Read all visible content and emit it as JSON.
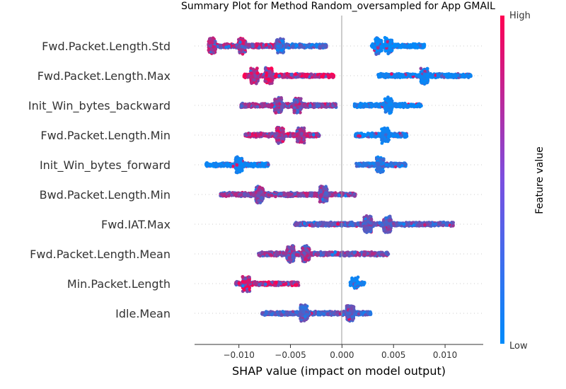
{
  "chart_data": {
    "type": "scatter",
    "subtype": "shap-beeswarm",
    "title": "Summary Plot for Method Random_oversampled for App GMAIL",
    "xlabel": "SHAP value (impact on model output)",
    "xlim": [
      -0.0143,
      0.0137
    ],
    "xticks": [
      -0.01,
      -0.005,
      0.0,
      0.005,
      0.01
    ],
    "xtick_labels": [
      "−0.010",
      "−0.005",
      "0.000",
      "0.005",
      "0.010"
    ],
    "colorbar": {
      "label": "Feature value",
      "high": "High",
      "low": "Low",
      "low_color": "#008bfb",
      "high_color": "#ff0052"
    },
    "features": [
      {
        "name": "Fwd.Packet.Length.Std",
        "min": -0.0128,
        "max": 0.008,
        "clusters": [
          {
            "start": -0.0128,
            "end": -0.0063,
            "dens": [
              -0.0126,
              -0.0097
            ],
            "hue": [
              0.55,
              0.4
            ]
          },
          {
            "start": -0.0062,
            "end": -0.0015,
            "dens": [
              -0.006
            ],
            "hue": [
              0.2,
              0.2
            ]
          },
          {
            "start": 0.0028,
            "end": 0.008,
            "dens": [
              0.0035,
              0.0045
            ],
            "hue": [
              0.02,
              0.05
            ]
          }
        ]
      },
      {
        "name": "Fwd.Packet.Length.Max",
        "min": -0.0095,
        "max": 0.0125,
        "clusters": [
          {
            "start": -0.0095,
            "end": -0.0008,
            "dens": [
              -0.0071,
              -0.0085
            ],
            "hue": [
              0.75,
              0.3
            ]
          },
          {
            "start": 0.0035,
            "end": 0.0125,
            "dens": [
              0.008
            ],
            "hue": [
              0.05,
              0.05
            ]
          }
        ]
      },
      {
        "name": "Init_Win_bytes_backward",
        "min": -0.0098,
        "max": 0.0077,
        "clusters": [
          {
            "start": -0.0098,
            "end": -0.0005,
            "dens": [
              -0.0062,
              -0.0043
            ],
            "hue": [
              0.5,
              0.3
            ]
          },
          {
            "start": 0.0012,
            "end": 0.0077,
            "dens": [
              0.0045
            ],
            "hue": [
              0.05,
              0.05
            ]
          }
        ]
      },
      {
        "name": "Fwd.Packet.Length.Min",
        "min": -0.0094,
        "max": 0.0063,
        "clusters": [
          {
            "start": -0.0094,
            "end": -0.0022,
            "dens": [
              -0.006,
              -0.004
            ],
            "hue": [
              0.7,
              0.35
            ]
          },
          {
            "start": 0.0013,
            "end": 0.0063,
            "dens": [
              0.0042
            ],
            "hue": [
              0.05,
              0.05
            ]
          }
        ]
      },
      {
        "name": "Init_Win_bytes_forward",
        "min": -0.0132,
        "max": 0.0062,
        "clusters": [
          {
            "start": -0.0132,
            "end": -0.0071,
            "dens": [
              -0.01
            ],
            "hue": [
              0.05,
              0.05
            ]
          },
          {
            "start": 0.0013,
            "end": 0.0062,
            "dens": [
              0.0037
            ],
            "hue": [
              0.15,
              0.15
            ]
          }
        ]
      },
      {
        "name": "Bwd.Packet.Length.Min",
        "min": -0.0118,
        "max": 0.0013,
        "clusters": [
          {
            "start": -0.0118,
            "end": 0.0013,
            "dens": [
              -0.0018,
              -0.008
            ],
            "hue": [
              0.5,
              0.25
            ]
          }
        ]
      },
      {
        "name": "Fwd.IAT.Max",
        "min": -0.0046,
        "max": 0.0108,
        "clusters": [
          {
            "start": -0.0046,
            "end": 0.0108,
            "dens": [
              0.0044,
              0.0025
            ],
            "hue": [
              0.35,
              0.2
            ]
          }
        ]
      },
      {
        "name": "Fwd.Packet.Length.Mean",
        "min": -0.0081,
        "max": 0.0045,
        "clusters": [
          {
            "start": -0.0081,
            "end": 0.0045,
            "dens": [
              -0.005,
              -0.0035
            ],
            "hue": [
              0.5,
              0.3
            ]
          }
        ]
      },
      {
        "name": "Min.Packet.Length",
        "min": -0.0103,
        "max": 0.0022,
        "clusters": [
          {
            "start": -0.0103,
            "end": -0.0042,
            "dens": [
              -0.0093
            ],
            "hue": [
              0.8,
              0.5
            ]
          },
          {
            "start": 0.0008,
            "end": 0.0022,
            "dens": [
              0.0013
            ],
            "hue": [
              0.05,
              0.05
            ]
          }
        ]
      },
      {
        "name": "Idle.Mean",
        "min": -0.0078,
        "max": 0.0028,
        "clusters": [
          {
            "start": -0.0078,
            "end": 0.0028,
            "dens": [
              -0.0037,
              0.0008
            ],
            "hue": [
              0.3,
              0.2
            ]
          }
        ]
      }
    ]
  }
}
